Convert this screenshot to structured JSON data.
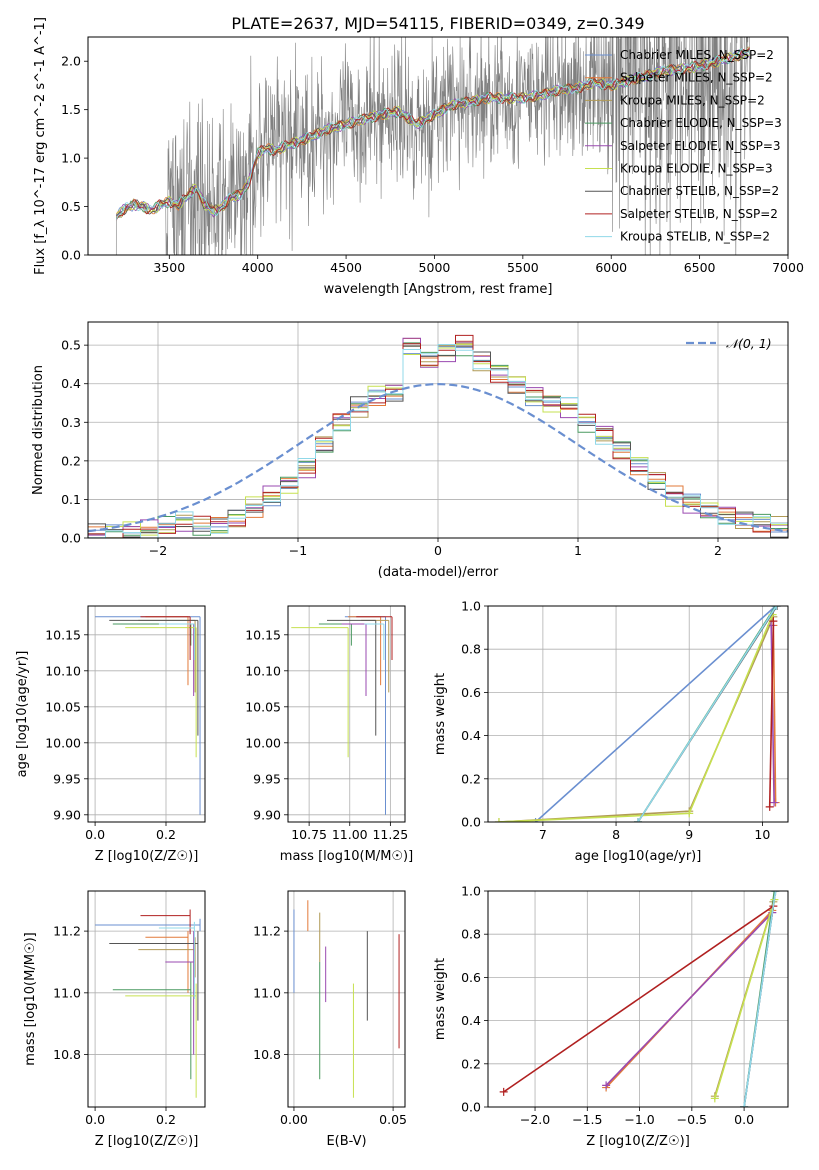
{
  "figure": {
    "title": "PLATE=2637, MJD=54115, FIBERID=0349, z=0.349"
  },
  "model_colors": [
    "#6a8fd0",
    "#e27a3a",
    "#b09a56",
    "#4a9a60",
    "#9a4ab0",
    "#c6e050",
    "#555555",
    "#b02020",
    "#90d8e8"
  ],
  "chart_data": [
    {
      "id": "spectrum",
      "type": "line",
      "title": "PLATE=2637, MJD=54115, FIBERID=0349, z=0.349",
      "xlabel": "wavelength [Angstrom, rest frame]",
      "ylabel": "Flux [f_λ 10^-17 erg cm^-2 s^-1 A^-1]",
      "xlim": [
        3040,
        7000
      ],
      "ylim": [
        0,
        2.25
      ],
      "xticks": [
        3500,
        4000,
        4500,
        5000,
        5500,
        6000,
        6500,
        7000
      ],
      "yticks": [
        0.0,
        0.5,
        1.0,
        1.5,
        2.0
      ],
      "grid": false,
      "legend_position": "top-right",
      "data_color": "#808080",
      "series": [
        {
          "name": "Chabrier MILES, N_SSP=2"
        },
        {
          "name": "Salpeter MILES, N_SSP=2"
        },
        {
          "name": "Kroupa MILES, N_SSP=2"
        },
        {
          "name": "Chabrier ELODIE, N_SSP=3"
        },
        {
          "name": "Salpeter ELODIE, N_SSP=3"
        },
        {
          "name": "Kroupa ELODIE, N_SSP=3"
        },
        {
          "name": "Chabrier STELIB, N_SSP=2"
        },
        {
          "name": "Salpeter STELIB, N_SSP=2"
        },
        {
          "name": "Kroupa STELIB, N_SSP=2"
        }
      ],
      "continuum": {
        "x": [
          3200,
          3250,
          3300,
          3350,
          3400,
          3450,
          3500,
          3550,
          3600,
          3650,
          3700,
          3750,
          3800,
          3850,
          3900,
          3950,
          4000,
          4050,
          4100,
          4150,
          4200,
          4300,
          4400,
          4500,
          4600,
          4700,
          4800,
          4900,
          5000,
          5100,
          5200,
          5300,
          5400,
          5500,
          5600,
          5700,
          5800,
          5900,
          6000,
          6100,
          6200,
          6300,
          6400,
          6500,
          6600,
          6700,
          6790
        ],
        "y": [
          0.4,
          0.48,
          0.52,
          0.5,
          0.46,
          0.52,
          0.55,
          0.52,
          0.6,
          0.7,
          0.52,
          0.45,
          0.5,
          0.6,
          0.62,
          0.75,
          1.05,
          1.1,
          1.08,
          1.12,
          1.15,
          1.22,
          1.3,
          1.35,
          1.4,
          1.45,
          1.48,
          1.35,
          1.45,
          1.55,
          1.58,
          1.62,
          1.62,
          1.62,
          1.65,
          1.7,
          1.72,
          1.78,
          1.75,
          1.8,
          1.85,
          1.9,
          1.92,
          1.95,
          2.0,
          2.05,
          2.1
        ]
      }
    },
    {
      "id": "residuals",
      "type": "histogram",
      "xlabel": "(data-model)/error",
      "ylabel": "Normed distribution",
      "xlim": [
        -2.5,
        2.5
      ],
      "ylim": [
        0,
        0.56
      ],
      "xticks": [
        -2,
        -1,
        0,
        1,
        2
      ],
      "yticks": [
        0.0,
        0.1,
        0.2,
        0.3,
        0.4,
        0.5
      ],
      "grid": true,
      "legend_position": "top-right",
      "gaussian": {
        "name": "𝒩(0, 1)",
        "mean": 0,
        "sigma": 1
      },
      "bin_edges": [
        -2.5,
        -2.375,
        -2.25,
        -2.125,
        -2.0,
        -1.875,
        -1.75,
        -1.625,
        -1.5,
        -1.375,
        -1.25,
        -1.125,
        -1.0,
        -0.875,
        -0.75,
        -0.625,
        -0.5,
        -0.375,
        -0.25,
        -0.125,
        0.0,
        0.125,
        0.25,
        0.375,
        0.5,
        0.625,
        0.75,
        0.875,
        1.0,
        1.125,
        1.25,
        1.375,
        1.5,
        1.625,
        1.75,
        1.875,
        2.0,
        2.125,
        2.25,
        2.375,
        2.5
      ],
      "hist_base": [
        0.01,
        0.01,
        0.02,
        0.02,
        0.03,
        0.04,
        0.03,
        0.03,
        0.05,
        0.08,
        0.11,
        0.14,
        0.18,
        0.24,
        0.3,
        0.34,
        0.37,
        0.38,
        0.5,
        0.46,
        0.48,
        0.5,
        0.46,
        0.43,
        0.4,
        0.37,
        0.35,
        0.34,
        0.3,
        0.27,
        0.23,
        0.19,
        0.15,
        0.11,
        0.09,
        0.07,
        0.06,
        0.05,
        0.04,
        0.03
      ]
    },
    {
      "id": "age-vs-Z",
      "type": "scatter",
      "xlabel": "Z [log10(Z/Z☉)]",
      "ylabel": "age  [log10(age/yr)]",
      "xlim": [
        -0.02,
        0.31
      ],
      "ylim": [
        9.89,
        10.19
      ],
      "xticks": [
        0.0,
        0.2
      ],
      "yticks": [
        9.9,
        9.95,
        10.0,
        10.05,
        10.1,
        10.15
      ],
      "grid": true,
      "points": [
        {
          "x": 0.296,
          "y": 10.175,
          "xerr": 0.296,
          "yerr_low": 0.275
        },
        {
          "x": 0.262,
          "y": 10.175,
          "xerr": 0.12,
          "yerr_low": 0.095
        },
        {
          "x": 0.282,
          "y": 10.17,
          "xerr": 0.16,
          "yerr_low": 0.1
        },
        {
          "x": 0.27,
          "y": 10.165,
          "xerr": 0.22,
          "yerr_low": 0.03
        },
        {
          "x": 0.278,
          "y": 10.165,
          "xerr": 0.08,
          "yerr_low": 0.1
        },
        {
          "x": 0.285,
          "y": 10.16,
          "xerr": 0.2,
          "yerr_low": 0.18
        },
        {
          "x": 0.29,
          "y": 10.17,
          "xerr": 0.25,
          "yerr_low": 0.16
        },
        {
          "x": 0.268,
          "y": 10.175,
          "xerr": 0.14,
          "yerr_low": 0.06
        },
        {
          "x": 0.28,
          "y": 10.165,
          "xerr": 0.1,
          "yerr_low": 0.05
        }
      ]
    },
    {
      "id": "age-vs-mass",
      "type": "scatter",
      "xlabel": "mass [log10(M/M☉)]",
      "ylabel": "",
      "xlim": [
        10.62,
        11.34
      ],
      "ylim": [
        9.89,
        10.19
      ],
      "xticks": [
        10.75,
        11.0,
        11.25
      ],
      "yticks": [
        9.9,
        9.95,
        10.0,
        10.05,
        10.1,
        10.15
      ],
      "grid": true,
      "points": [
        {
          "x": 11.22,
          "y": 10.175,
          "xerr": 0.25,
          "yerr_low": 0.275
        },
        {
          "x": 11.19,
          "y": 10.175,
          "xerr": 0.2,
          "yerr_low": 0.095
        },
        {
          "x": 11.24,
          "y": 10.17,
          "xerr": 0.17,
          "yerr_low": 0.1
        },
        {
          "x": 11.01,
          "y": 10.165,
          "xerr": 0.2,
          "yerr_low": 0.03
        },
        {
          "x": 11.1,
          "y": 10.165,
          "xerr": 0.15,
          "yerr_low": 0.1
        },
        {
          "x": 10.99,
          "y": 10.16,
          "xerr": 0.35,
          "yerr_low": 0.18
        },
        {
          "x": 11.16,
          "y": 10.17,
          "xerr": 0.3,
          "yerr_low": 0.16
        },
        {
          "x": 11.26,
          "y": 10.175,
          "xerr": 0.22,
          "yerr_low": 0.06
        },
        {
          "x": 11.21,
          "y": 10.165,
          "xerr": 0.12,
          "yerr_low": 0.05
        }
      ]
    },
    {
      "id": "weight-vs-age",
      "type": "line",
      "xlabel": "age  [log10(age/yr)]",
      "ylabel": "mass weight",
      "xlim": [
        6.25,
        10.35
      ],
      "ylim": [
        0,
        1
      ],
      "xticks": [
        7,
        8,
        9,
        10
      ],
      "yticks": [
        0.0,
        0.2,
        0.4,
        0.6,
        0.8,
        1.0
      ],
      "grid": true,
      "series": [
        {
          "x": [
            6.9,
            10.18
          ],
          "y": [
            0.0,
            1.0
          ]
        },
        {
          "x": [
            10.18,
            10.15
          ],
          "y": [
            0.09,
            0.91
          ]
        },
        {
          "x": [
            6.4,
            9.0,
            10.15
          ],
          "y": [
            0.0,
            0.05,
            0.95
          ]
        },
        {
          "x": [
            8.3,
            10.18
          ],
          "y": [
            0.0,
            1.0
          ]
        },
        {
          "x": [
            10.16,
            10.12
          ],
          "y": [
            0.09,
            0.91
          ]
        },
        {
          "x": [
            6.4,
            9.0,
            10.14
          ],
          "y": [
            0.0,
            0.04,
            0.96
          ]
        },
        {
          "x": [
            8.3,
            10.2
          ],
          "y": [
            0.0,
            1.0
          ]
        },
        {
          "x": [
            10.1,
            10.15
          ],
          "y": [
            0.07,
            0.93
          ]
        },
        {
          "x": [
            8.3,
            10.19
          ],
          "y": [
            0.0,
            1.0
          ]
        }
      ]
    },
    {
      "id": "mass-vs-Z",
      "type": "scatter",
      "xlabel": "Z [log10(Z/Z☉)]",
      "ylabel": "mass [log10(M/M☉)]",
      "xlim": [
        -0.02,
        0.31
      ],
      "ylim": [
        10.63,
        11.33
      ],
      "xticks": [
        0.0,
        0.2
      ],
      "yticks": [
        10.8,
        11.0,
        11.2
      ],
      "grid": true,
      "points": [
        {
          "x": 0.296,
          "y": 11.22,
          "xerr": 0.296,
          "ylo": 11.2,
          "yhi": 11.24
        },
        {
          "x": 0.262,
          "y": 11.18,
          "xerr": 0.12,
          "ylo": 11.0,
          "yhi": 11.2
        },
        {
          "x": 0.282,
          "y": 11.14,
          "xerr": 0.16,
          "ylo": 11.05,
          "yhi": 11.18
        },
        {
          "x": 0.27,
          "y": 11.01,
          "xerr": 0.22,
          "ylo": 10.72,
          "yhi": 11.1
        },
        {
          "x": 0.278,
          "y": 11.1,
          "xerr": 0.08,
          "ylo": 10.8,
          "yhi": 11.2
        },
        {
          "x": 0.285,
          "y": 10.99,
          "xerr": 0.2,
          "ylo": 10.66,
          "yhi": 11.03
        },
        {
          "x": 0.29,
          "y": 11.16,
          "xerr": 0.25,
          "ylo": 10.91,
          "yhi": 11.2
        },
        {
          "x": 0.268,
          "y": 11.25,
          "xerr": 0.14,
          "ylo": 11.19,
          "yhi": 11.27
        },
        {
          "x": 0.28,
          "y": 11.21,
          "xerr": 0.1,
          "ylo": 10.98,
          "yhi": 11.23
        }
      ]
    },
    {
      "id": "mass-vs-ebv",
      "type": "scatter",
      "xlabel": "E(B-V)",
      "ylabel": "",
      "xlim": [
        -0.003,
        0.056
      ],
      "ylim": [
        10.63,
        11.33
      ],
      "xticks": [
        0.0,
        0.05
      ],
      "yticks": [
        10.8,
        11.0,
        11.2
      ],
      "grid": true,
      "points": [
        {
          "x": 0.0,
          "ylo": 11.0,
          "yhi": 11.27
        },
        {
          "x": 0.007,
          "ylo": 11.2,
          "yhi": 11.3
        },
        {
          "x": 0.013,
          "ylo": 11.1,
          "yhi": 11.26
        },
        {
          "x": 0.013,
          "ylo": 10.72,
          "yhi": 11.1
        },
        {
          "x": 0.016,
          "ylo": 10.97,
          "yhi": 11.15
        },
        {
          "x": 0.03,
          "ylo": 10.66,
          "yhi": 11.03
        },
        {
          "x": 0.037,
          "ylo": 10.91,
          "yhi": 11.2
        },
        {
          "x": 0.053,
          "ylo": 10.82,
          "yhi": 11.19
        }
      ]
    },
    {
      "id": "weight-vs-Z",
      "type": "line",
      "xlabel": "Z [log10(Z/Z☉)]",
      "ylabel": "mass weight",
      "xlim": [
        -2.45,
        0.42
      ],
      "ylim": [
        0,
        1
      ],
      "xticks": [
        -2.0,
        -1.5,
        -1.0,
        -0.5,
        0.0
      ],
      "yticks": [
        0.0,
        0.2,
        0.4,
        0.6,
        0.8,
        1.0
      ],
      "grid": true,
      "series": [
        {
          "x": [
            0.0,
            0.3
          ],
          "y": [
            0.0,
            1.0
          ]
        },
        {
          "x": [
            -1.32,
            0.27
          ],
          "y": [
            0.09,
            0.91
          ]
        },
        {
          "x": [
            -0.28,
            0.28
          ],
          "y": [
            0.05,
            0.95
          ]
        },
        {
          "x": [
            0.0,
            0.29
          ],
          "y": [
            0.0,
            1.0
          ]
        },
        {
          "x": [
            -1.32,
            0.27
          ],
          "y": [
            0.1,
            0.9
          ]
        },
        {
          "x": [
            -0.28,
            0.29
          ],
          "y": [
            0.04,
            0.96
          ]
        },
        {
          "x": [
            0.0,
            0.3
          ],
          "y": [
            0.0,
            1.0
          ]
        },
        {
          "x": [
            -2.3,
            0.28
          ],
          "y": [
            0.07,
            0.93
          ]
        },
        {
          "x": [
            0.0,
            0.3
          ],
          "y": [
            0.0,
            1.0
          ]
        }
      ]
    }
  ]
}
